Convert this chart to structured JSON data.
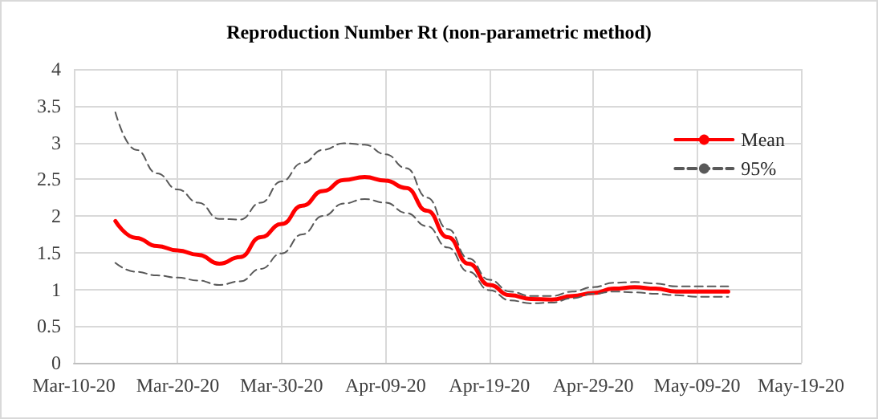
{
  "chart_data": {
    "type": "line",
    "title": "Reproduction Number Rt (non-parametric method)",
    "x": [
      "--03-14",
      "--03-16",
      "--03-18",
      "--03-20",
      "--03-22",
      "--03-24",
      "--03-26",
      "--03-28",
      "--03-30",
      "--04-01",
      "--04-03",
      "--04-05",
      "--04-07",
      "--04-09",
      "--04-11",
      "--04-13",
      "--04-15",
      "--04-17",
      "--04-19",
      "--04-21",
      "--04-23",
      "--04-25",
      "--04-27",
      "--04-29",
      "--05-01",
      "--05-03",
      "--05-05",
      "--05-07",
      "--05-09",
      "--05-11",
      "--05-12"
    ],
    "series": [
      {
        "name": "Mean",
        "color": "#ff0000",
        "line_style": "solid",
        "values": [
          1.93,
          1.7,
          1.59,
          1.53,
          1.47,
          1.35,
          1.44,
          1.71,
          1.89,
          2.14,
          2.34,
          2.49,
          2.53,
          2.48,
          2.38,
          2.07,
          1.71,
          1.35,
          1.06,
          0.92,
          0.87,
          0.86,
          0.91,
          0.95,
          1.01,
          1.03,
          1.01,
          0.97,
          0.97,
          0.97,
          0.97
        ]
      },
      {
        "name": "95%",
        "color": "#595959",
        "line_style": "dashed",
        "values": [
          3.41,
          2.9,
          2.58,
          2.36,
          2.18,
          1.96,
          1.95,
          2.18,
          2.47,
          2.72,
          2.9,
          2.99,
          2.97,
          2.84,
          2.65,
          2.25,
          1.82,
          1.42,
          1.13,
          0.97,
          0.91,
          0.91,
          0.97,
          1.03,
          1.09,
          1.1,
          1.08,
          1.04,
          1.04,
          1.04,
          1.04
        ]
      },
      {
        "color": "#595959",
        "line_style": "dashed",
        "values": [
          1.36,
          1.24,
          1.19,
          1.16,
          1.12,
          1.06,
          1.11,
          1.28,
          1.49,
          1.75,
          2.0,
          2.17,
          2.23,
          2.18,
          2.04,
          1.86,
          1.57,
          1.24,
          0.99,
          0.85,
          0.81,
          0.82,
          0.88,
          0.94,
          0.97,
          0.96,
          0.94,
          0.92,
          0.9,
          0.9,
          0.9
        ]
      }
    ],
    "xlim": [
      "--03-10",
      "--05-19"
    ],
    "xticks": [
      {
        "value": "--03-10",
        "label": "Mar-10-20"
      },
      {
        "value": "--03-20",
        "label": "Mar-20-20"
      },
      {
        "value": "--03-30",
        "label": "Mar-30-20"
      },
      {
        "value": "--04-09",
        "label": "Apr-09-20"
      },
      {
        "value": "--04-19",
        "label": "Apr-19-20"
      },
      {
        "value": "--04-29",
        "label": "Apr-29-20"
      },
      {
        "value": "--05-09",
        "label": "May-09-20"
      },
      {
        "value": "--05-19",
        "label": "May-19-20"
      }
    ],
    "ylim": [
      0,
      4
    ],
    "yticks": [
      0,
      0.5,
      1,
      1.5,
      2,
      2.5,
      3,
      3.5,
      4
    ],
    "grid": true,
    "legend": "right",
    "marker": "none"
  }
}
